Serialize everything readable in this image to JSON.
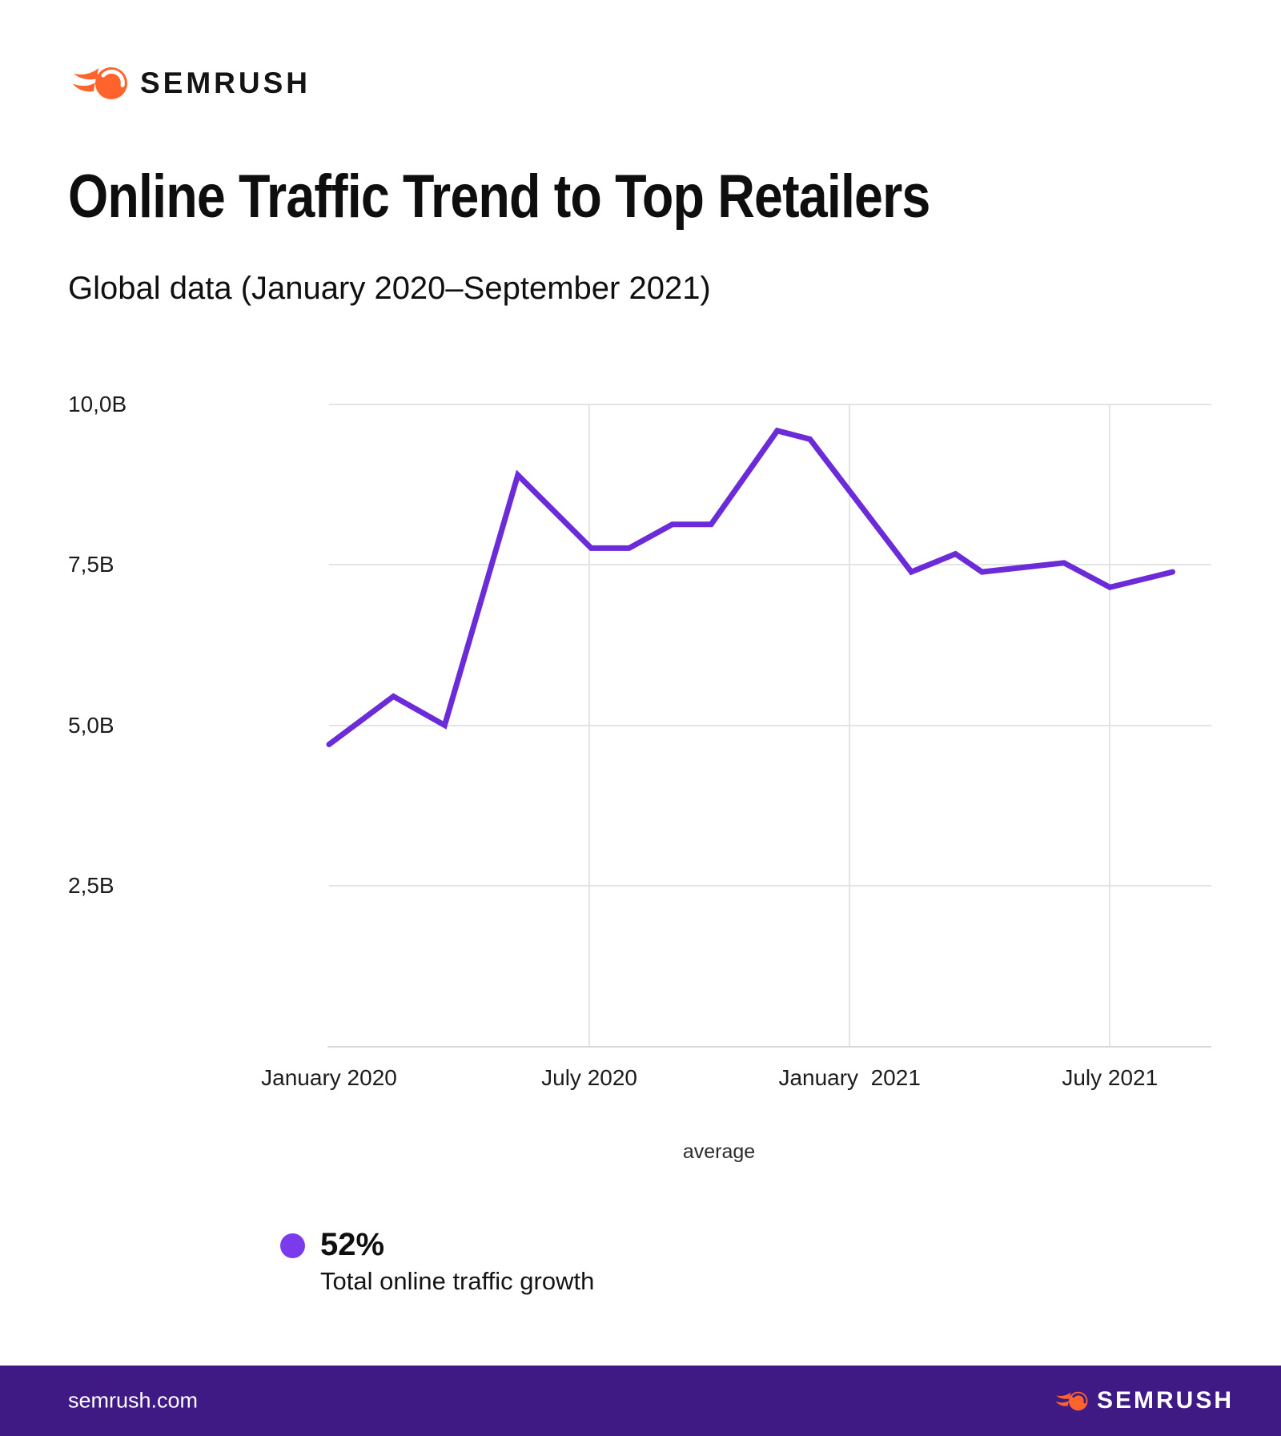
{
  "brand": {
    "logo_text": "SEMRUSH",
    "orange": "#FF642D"
  },
  "header": {
    "title": "Online Traffic Trend to Top Retailers",
    "subtitle": "Global data (January 2020–September 2021)"
  },
  "chart_data": {
    "type": "line",
    "title": "Online Traffic Trend to Top Retailers",
    "subtitle": "Global data (January 2020–September 2021)",
    "unit": "billions of visits per month",
    "ylim": [
      0,
      10
    ],
    "grid": true,
    "legend": "average",
    "legend_position": "bottom-center",
    "line_color": "#6C2BD9",
    "grid_color": "#E4E4E4",
    "axis_color": "#D9D9D9",
    "y_ticks": [
      {
        "label": "10,0B",
        "value": 10
      },
      {
        "label": "7,5B",
        "value": 7.5
      },
      {
        "label": "5,0B",
        "value": 5
      },
      {
        "label": "2,5B",
        "value": 2.5
      }
    ],
    "x_ticks": [
      {
        "label": "January 2020",
        "x": 0.0
      },
      {
        "label": "July 2020",
        "x": 0.295
      },
      {
        "label": "January  2021",
        "x": 0.59
      },
      {
        "label": "July 2021",
        "x": 0.885
      }
    ],
    "series": [
      {
        "name": "average",
        "points": [
          {
            "x": 0.0,
            "value": 4.7
          },
          {
            "x": 0.073,
            "value": 5.45
          },
          {
            "x": 0.131,
            "value": 5.0
          },
          {
            "x": 0.214,
            "value": 8.9
          },
          {
            "x": 0.297,
            "value": 7.76
          },
          {
            "x": 0.34,
            "value": 7.76
          },
          {
            "x": 0.389,
            "value": 8.13
          },
          {
            "x": 0.433,
            "value": 8.13
          },
          {
            "x": 0.508,
            "value": 9.59
          },
          {
            "x": 0.545,
            "value": 9.46
          },
          {
            "x": 0.66,
            "value": 7.39
          },
          {
            "x": 0.71,
            "value": 7.67
          },
          {
            "x": 0.74,
            "value": 7.39
          },
          {
            "x": 0.833,
            "value": 7.53
          },
          {
            "x": 0.885,
            "value": 7.15
          },
          {
            "x": 0.956,
            "value": 7.39
          }
        ]
      }
    ]
  },
  "callout": {
    "value": "52%",
    "label": "Total online traffic growth",
    "dot_color": "#7C3AED"
  },
  "footer": {
    "site": "semrush.com",
    "logo_text": "SEMRUSH",
    "bg": "#3F1A85"
  }
}
